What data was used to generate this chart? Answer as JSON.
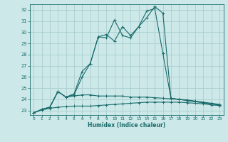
{
  "title": "",
  "xlabel": "Humidex (Indice chaleur)",
  "bg_color": "#cce8e8",
  "grid_color": "#aacece",
  "line_color": "#1a6b6b",
  "xlim": [
    -0.5,
    23.5
  ],
  "ylim": [
    22.6,
    32.5
  ],
  "yticks": [
    23,
    24,
    25,
    26,
    27,
    28,
    29,
    30,
    31,
    32
  ],
  "xticks": [
    0,
    1,
    2,
    3,
    4,
    5,
    6,
    7,
    8,
    9,
    10,
    11,
    12,
    13,
    14,
    15,
    16,
    17,
    18,
    19,
    20,
    21,
    22,
    23
  ],
  "lines": [
    {
      "x": [
        0,
        1,
        2,
        3,
        4,
        5,
        6,
        7,
        8,
        9,
        10,
        11,
        12,
        13,
        14,
        15,
        16,
        17,
        18,
        19,
        20,
        21,
        22,
        23
      ],
      "y": [
        22.8,
        23.05,
        23.2,
        23.3,
        23.35,
        23.4,
        23.4,
        23.4,
        23.45,
        23.5,
        23.55,
        23.6,
        23.65,
        23.7,
        23.75,
        23.75,
        23.75,
        23.75,
        23.75,
        23.7,
        23.65,
        23.6,
        23.5,
        23.45
      ]
    },
    {
      "x": [
        0,
        1,
        2,
        3,
        4,
        5,
        6,
        7,
        8,
        9,
        10,
        11,
        12,
        13,
        14,
        15,
        16,
        17,
        18,
        19,
        20,
        21,
        22,
        23
      ],
      "y": [
        22.8,
        23.1,
        23.3,
        24.7,
        24.2,
        24.3,
        24.4,
        24.4,
        24.3,
        24.3,
        24.3,
        24.3,
        24.2,
        24.2,
        24.2,
        24.15,
        24.1,
        24.05,
        24.0,
        23.95,
        23.85,
        23.75,
        23.65,
        23.55
      ]
    },
    {
      "x": [
        0,
        1,
        2,
        3,
        4,
        5,
        6,
        7,
        8,
        9,
        10,
        11,
        12,
        13,
        14,
        15,
        16,
        17,
        18,
        19,
        20,
        21,
        22,
        23
      ],
      "y": [
        22.8,
        23.1,
        23.3,
        24.7,
        24.2,
        24.4,
        26.0,
        27.2,
        29.6,
        29.5,
        31.1,
        29.7,
        29.5,
        30.5,
        31.9,
        32.1,
        28.1,
        24.1,
        24.0,
        23.9,
        23.8,
        23.7,
        23.6,
        23.5
      ]
    },
    {
      "x": [
        0,
        1,
        2,
        3,
        4,
        5,
        6,
        7,
        8,
        9,
        10,
        11,
        12,
        13,
        14,
        15,
        16,
        17,
        18,
        19,
        20,
        21,
        22,
        23
      ],
      "y": [
        22.8,
        23.1,
        23.3,
        24.7,
        24.2,
        24.5,
        26.5,
        27.2,
        29.6,
        29.8,
        29.2,
        30.5,
        29.7,
        30.5,
        31.3,
        32.3,
        31.7,
        24.1,
        24.0,
        23.9,
        23.8,
        23.7,
        23.6,
        23.5
      ]
    }
  ]
}
